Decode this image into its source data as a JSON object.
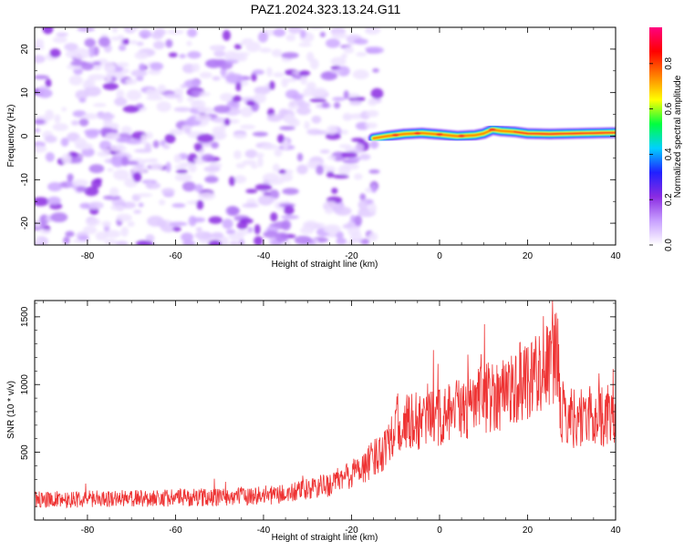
{
  "figure": {
    "title": "PAZ1.2024.323.13.24.G11"
  },
  "colorbar": {
    "label": "Normalized spectral amplitude",
    "ticks": [
      "0.0",
      "0.2",
      "0.4",
      "0.6",
      "0.8"
    ],
    "tick_values": [
      0.0,
      0.2,
      0.4,
      0.6,
      0.8
    ],
    "range": [
      0,
      0.96
    ],
    "colors": [
      "#ffffff",
      "#c8a0ff",
      "#8a2be2",
      "#2020ff",
      "#00d0ff",
      "#00ff40",
      "#ffff00",
      "#ff8000",
      "#ff0000",
      "#ff0080"
    ]
  },
  "chart_data": [
    {
      "type": "heatmap",
      "title": "PAZ1.2024.323.13.24.G11",
      "xlabel": "Height of straight line (km)",
      "ylabel": "Frequency (Hz)",
      "xlim": [
        -92,
        40
      ],
      "ylim": [
        -25,
        25
      ],
      "xticks": [
        -80,
        -60,
        -40,
        -20,
        0,
        20,
        40
      ],
      "yticks": [
        -20,
        -10,
        0,
        10,
        20
      ],
      "xtick_labels": [
        "-80",
        "-60",
        "-40",
        "-20",
        "0",
        "20",
        "40"
      ],
      "ytick_labels": [
        "-20",
        "-10",
        "0",
        "10",
        "20"
      ],
      "noise_region_x": [
        -92,
        -14
      ],
      "signal_region_x": [
        -15,
        40
      ],
      "signal_track": {
        "x": [
          -15,
          -12,
          -8,
          -4,
          0,
          4,
          8,
          10,
          12,
          14,
          17,
          20,
          25,
          30,
          35,
          40
        ],
        "freq": [
          -0.5,
          0.0,
          0.5,
          0.7,
          0.4,
          0.0,
          0.2,
          0.6,
          1.5,
          1.2,
          1.0,
          0.6,
          0.5,
          0.6,
          0.7,
          0.8
        ]
      },
      "grid": false
    },
    {
      "type": "line",
      "xlabel": "Height of straight line (km)",
      "ylabel": "SNR (10 * v/v)",
      "xlim": [
        -92,
        40
      ],
      "ylim": [
        0,
        1620
      ],
      "xticks": [
        -80,
        -60,
        -40,
        -20,
        0,
        20,
        40
      ],
      "yticks": [
        500,
        1000,
        1500
      ],
      "xtick_labels": [
        "-80",
        "-60",
        "-40",
        "-20",
        "0",
        "20",
        "40"
      ],
      "ytick_labels": [
        "500",
        "1000",
        "1500"
      ],
      "color": "#ee3333",
      "envelope": {
        "x": [
          -92,
          -70,
          -50,
          -35,
          -25,
          -20,
          -16,
          -13,
          -10,
          -5,
          0,
          5,
          10,
          15,
          20,
          25,
          27,
          27.5,
          30,
          40
        ],
        "y": [
          150,
          160,
          170,
          190,
          260,
          340,
          420,
          520,
          700,
          720,
          760,
          800,
          900,
          950,
          1050,
          1150,
          1200,
          800,
          760,
          770
        ]
      },
      "grid": false
    }
  ]
}
